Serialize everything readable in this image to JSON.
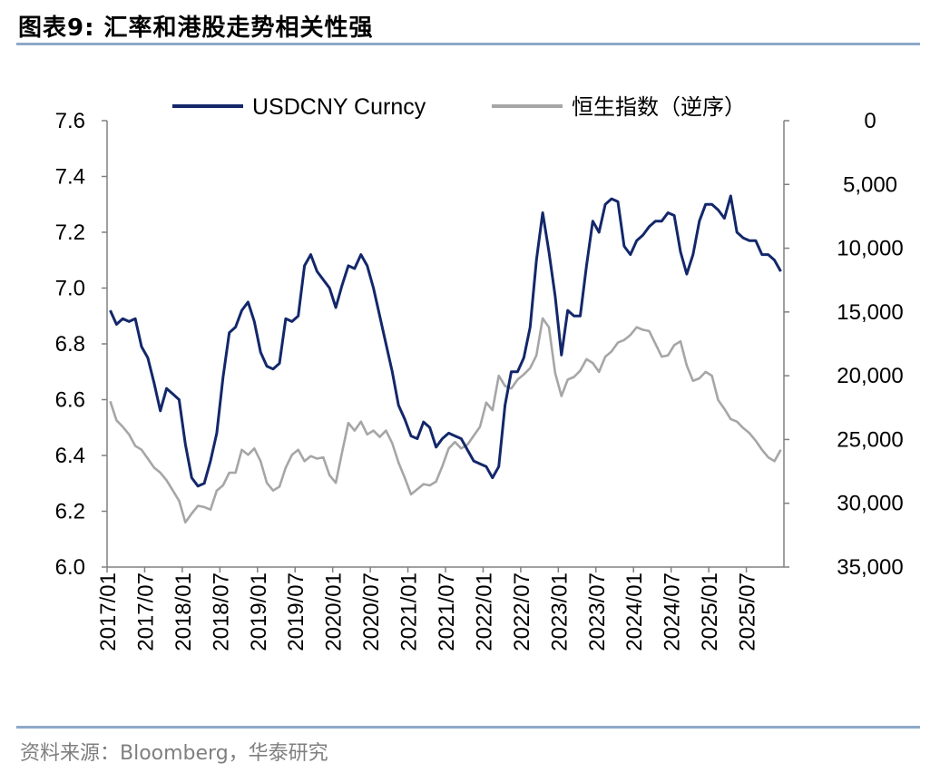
{
  "header": {
    "title": "图表9:  汇率和港股走势相关性强"
  },
  "footer": {
    "source": "资料来源：Bloomberg，华泰研究"
  },
  "chart_data": {
    "type": "line",
    "title": "",
    "legend_position": "top-center",
    "grid": false,
    "x": [
      "2017/01",
      "2017/07",
      "2018/01",
      "2018/07",
      "2019/01",
      "2019/07",
      "2020/01",
      "2020/07",
      "2021/01",
      "2021/07",
      "2022/01",
      "2022/07",
      "2023/01",
      "2023/07",
      "2024/01",
      "2024/07",
      "2025/01",
      "2025/07"
    ],
    "x_range": [
      "2017/01",
      "2025/12"
    ],
    "y_left": {
      "range": [
        6.0,
        7.6
      ],
      "ticks": [
        "6.0",
        "6.2",
        "6.4",
        "6.6",
        "6.8",
        "7.0",
        "7.2",
        "7.4",
        "7.6"
      ]
    },
    "y_right": {
      "range": [
        0,
        35000
      ],
      "inverted": true,
      "ticks": [
        "0",
        "5,000",
        "10,000",
        "15,000",
        "20,000",
        "25,000",
        "30,000",
        "35,000"
      ]
    },
    "series": [
      {
        "name": "USDCNY Curncy",
        "axis": "left",
        "color": "#13276A",
        "points": [
          [
            "2017/01",
            6.92
          ],
          [
            "2017/02",
            6.87
          ],
          [
            "2017/03",
            6.89
          ],
          [
            "2017/04",
            6.88
          ],
          [
            "2017/05",
            6.89
          ],
          [
            "2017/06",
            6.79
          ],
          [
            "2017/07",
            6.75
          ],
          [
            "2017/08",
            6.66
          ],
          [
            "2017/09",
            6.56
          ],
          [
            "2017/10",
            6.64
          ],
          [
            "2017/11",
            6.62
          ],
          [
            "2017/12",
            6.6
          ],
          [
            "2018/01",
            6.44
          ],
          [
            "2018/02",
            6.32
          ],
          [
            "2018/03",
            6.29
          ],
          [
            "2018/04",
            6.3
          ],
          [
            "2018/05",
            6.38
          ],
          [
            "2018/06",
            6.48
          ],
          [
            "2018/07",
            6.68
          ],
          [
            "2018/08",
            6.84
          ],
          [
            "2018/09",
            6.86
          ],
          [
            "2018/10",
            6.92
          ],
          [
            "2018/11",
            6.95
          ],
          [
            "2018/12",
            6.88
          ],
          [
            "2019/01",
            6.77
          ],
          [
            "2019/02",
            6.72
          ],
          [
            "2019/03",
            6.71
          ],
          [
            "2019/04",
            6.73
          ],
          [
            "2019/05",
            6.89
          ],
          [
            "2019/06",
            6.88
          ],
          [
            "2019/07",
            6.9
          ],
          [
            "2019/08",
            7.08
          ],
          [
            "2019/09",
            7.12
          ],
          [
            "2019/10",
            7.06
          ],
          [
            "2019/11",
            7.03
          ],
          [
            "2019/12",
            7.0
          ],
          [
            "2020/01",
            6.93
          ],
          [
            "2020/02",
            7.01
          ],
          [
            "2020/03",
            7.08
          ],
          [
            "2020/04",
            7.07
          ],
          [
            "2020/05",
            7.12
          ],
          [
            "2020/06",
            7.08
          ],
          [
            "2020/07",
            7.0
          ],
          [
            "2020/08",
            6.9
          ],
          [
            "2020/09",
            6.8
          ],
          [
            "2020/10",
            6.7
          ],
          [
            "2020/11",
            6.58
          ],
          [
            "2020/12",
            6.53
          ],
          [
            "2021/01",
            6.47
          ],
          [
            "2021/02",
            6.46
          ],
          [
            "2021/03",
            6.52
          ],
          [
            "2021/04",
            6.5
          ],
          [
            "2021/05",
            6.43
          ],
          [
            "2021/06",
            6.46
          ],
          [
            "2021/07",
            6.48
          ],
          [
            "2021/08",
            6.47
          ],
          [
            "2021/09",
            6.46
          ],
          [
            "2021/10",
            6.42
          ],
          [
            "2021/11",
            6.38
          ],
          [
            "2021/12",
            6.37
          ],
          [
            "2022/01",
            6.36
          ],
          [
            "2022/02",
            6.32
          ],
          [
            "2022/03",
            6.36
          ],
          [
            "2022/04",
            6.58
          ],
          [
            "2022/05",
            6.7
          ],
          [
            "2022/06",
            6.7
          ],
          [
            "2022/07",
            6.75
          ],
          [
            "2022/08",
            6.86
          ],
          [
            "2022/09",
            7.1
          ],
          [
            "2022/10",
            7.27
          ],
          [
            "2022/11",
            7.13
          ],
          [
            "2022/12",
            6.97
          ],
          [
            "2023/01",
            6.76
          ],
          [
            "2023/02",
            6.92
          ],
          [
            "2023/03",
            6.9
          ],
          [
            "2023/04",
            6.9
          ],
          [
            "2023/05",
            7.08
          ],
          [
            "2023/06",
            7.24
          ],
          [
            "2023/07",
            7.2
          ],
          [
            "2023/08",
            7.3
          ],
          [
            "2023/09",
            7.32
          ],
          [
            "2023/10",
            7.31
          ],
          [
            "2023/11",
            7.15
          ],
          [
            "2023/12",
            7.12
          ],
          [
            "2024/01",
            7.17
          ],
          [
            "2024/02",
            7.19
          ],
          [
            "2024/03",
            7.22
          ],
          [
            "2024/04",
            7.24
          ],
          [
            "2024/05",
            7.24
          ],
          [
            "2024/06",
            7.27
          ],
          [
            "2024/07",
            7.26
          ],
          [
            "2024/08",
            7.13
          ],
          [
            "2024/09",
            7.05
          ],
          [
            "2024/10",
            7.12
          ],
          [
            "2024/11",
            7.24
          ],
          [
            "2024/12",
            7.3
          ],
          [
            "2025/01",
            7.3
          ],
          [
            "2025/02",
            7.28
          ],
          [
            "2025/03",
            7.25
          ],
          [
            "2025/04",
            7.33
          ],
          [
            "2025/05",
            7.2
          ],
          [
            "2025/06",
            7.18
          ],
          [
            "2025/07",
            7.17
          ],
          [
            "2025/08",
            7.17
          ],
          [
            "2025/09",
            7.12
          ],
          [
            "2025/10",
            7.12
          ],
          [
            "2025/11",
            7.1
          ],
          [
            "2025/12",
            7.06
          ]
        ]
      },
      {
        "name": "恒生指数（逆序）",
        "axis": "right",
        "color": "#A6A6A6",
        "points": [
          [
            "2017/01",
            22000
          ],
          [
            "2017/02",
            23500
          ],
          [
            "2017/03",
            24000
          ],
          [
            "2017/04",
            24600
          ],
          [
            "2017/05",
            25500
          ],
          [
            "2017/06",
            25800
          ],
          [
            "2017/07",
            26500
          ],
          [
            "2017/08",
            27200
          ],
          [
            "2017/09",
            27600
          ],
          [
            "2017/10",
            28200
          ],
          [
            "2017/11",
            29000
          ],
          [
            "2017/12",
            29800
          ],
          [
            "2018/01",
            31500
          ],
          [
            "2018/02",
            30800
          ],
          [
            "2018/03",
            30200
          ],
          [
            "2018/04",
            30300
          ],
          [
            "2018/05",
            30500
          ],
          [
            "2018/06",
            29000
          ],
          [
            "2018/07",
            28600
          ],
          [
            "2018/08",
            27600
          ],
          [
            "2018/09",
            27600
          ],
          [
            "2018/10",
            25800
          ],
          [
            "2018/11",
            26200
          ],
          [
            "2018/12",
            25700
          ],
          [
            "2019/01",
            26700
          ],
          [
            "2019/02",
            28400
          ],
          [
            "2019/03",
            29000
          ],
          [
            "2019/04",
            28700
          ],
          [
            "2019/05",
            27200
          ],
          [
            "2019/06",
            26200
          ],
          [
            "2019/07",
            25800
          ],
          [
            "2019/08",
            26700
          ],
          [
            "2019/09",
            26300
          ],
          [
            "2019/10",
            26500
          ],
          [
            "2019/11",
            26400
          ],
          [
            "2019/12",
            27800
          ],
          [
            "2020/01",
            28400
          ],
          [
            "2020/02",
            26000
          ],
          [
            "2020/03",
            23700
          ],
          [
            "2020/04",
            24300
          ],
          [
            "2020/05",
            23600
          ],
          [
            "2020/06",
            24600
          ],
          [
            "2020/07",
            24300
          ],
          [
            "2020/08",
            24800
          ],
          [
            "2020/09",
            24300
          ],
          [
            "2020/10",
            25300
          ],
          [
            "2020/11",
            26800
          ],
          [
            "2020/12",
            28000
          ],
          [
            "2021/01",
            29300
          ],
          [
            "2021/02",
            28900
          ],
          [
            "2021/03",
            28500
          ],
          [
            "2021/04",
            28600
          ],
          [
            "2021/05",
            28300
          ],
          [
            "2021/06",
            27100
          ],
          [
            "2021/07",
            25700
          ],
          [
            "2021/08",
            25200
          ],
          [
            "2021/09",
            25700
          ],
          [
            "2021/10",
            25400
          ],
          [
            "2021/11",
            24700
          ],
          [
            "2021/12",
            24000
          ],
          [
            "2022/01",
            22100
          ],
          [
            "2022/02",
            22700
          ],
          [
            "2022/03",
            20000
          ],
          [
            "2022/04",
            20800
          ],
          [
            "2022/05",
            21000
          ],
          [
            "2022/06",
            20300
          ],
          [
            "2022/07",
            19900
          ],
          [
            "2022/08",
            19400
          ],
          [
            "2022/09",
            18400
          ],
          [
            "2022/10",
            15500
          ],
          [
            "2022/11",
            16200
          ],
          [
            "2022/12",
            19800
          ],
          [
            "2023/01",
            21600
          ],
          [
            "2023/02",
            20300
          ],
          [
            "2023/03",
            20100
          ],
          [
            "2023/04",
            19600
          ],
          [
            "2023/05",
            18700
          ],
          [
            "2023/06",
            19000
          ],
          [
            "2023/07",
            19700
          ],
          [
            "2023/08",
            18500
          ],
          [
            "2023/09",
            18100
          ],
          [
            "2023/10",
            17400
          ],
          [
            "2023/11",
            17200
          ],
          [
            "2023/12",
            16800
          ],
          [
            "2024/01",
            16200
          ],
          [
            "2024/02",
            16400
          ],
          [
            "2024/03",
            16500
          ],
          [
            "2024/04",
            17500
          ],
          [
            "2024/05",
            18500
          ],
          [
            "2024/06",
            18400
          ],
          [
            "2024/07",
            17600
          ],
          [
            "2024/08",
            17300
          ],
          [
            "2024/09",
            19200
          ],
          [
            "2024/10",
            20400
          ],
          [
            "2024/11",
            20200
          ],
          [
            "2024/12",
            19700
          ],
          [
            "2025/01",
            20000
          ],
          [
            "2025/02",
            21900
          ],
          [
            "2025/03",
            22600
          ],
          [
            "2025/04",
            23400
          ],
          [
            "2025/05",
            23600
          ],
          [
            "2025/06",
            24100
          ],
          [
            "2025/07",
            24500
          ],
          [
            "2025/08",
            25100
          ],
          [
            "2025/09",
            25800
          ],
          [
            "2025/10",
            26400
          ],
          [
            "2025/11",
            26700
          ],
          [
            "2025/12",
            25800
          ]
        ]
      }
    ]
  }
}
